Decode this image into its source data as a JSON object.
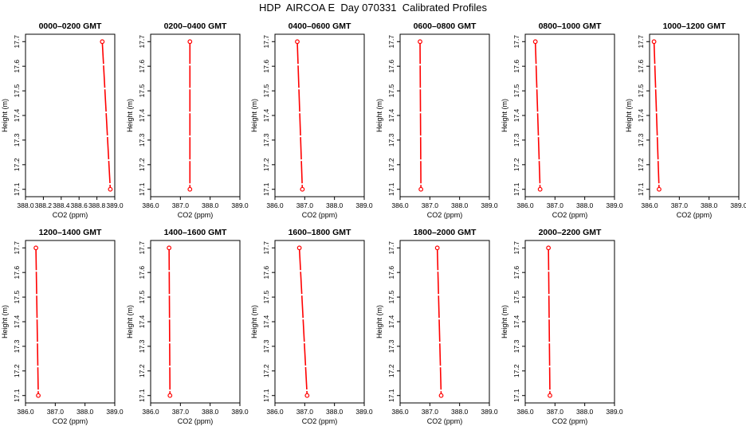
{
  "page_title": "HDP  AIRCOA E  Day 070331  Calibrated Profiles",
  "colors": {
    "profile": "#ff0000",
    "axes": "#000000"
  },
  "chart_data": [
    {
      "type": "line",
      "title": "0000–0200 GMT",
      "xlabel": "CO2 (ppm)",
      "ylabel": "Height (m)",
      "xlim": [
        388.0,
        389.0
      ],
      "ylim": [
        17.07,
        17.73
      ],
      "xticks": [
        "388.0",
        "388.2",
        "388.4",
        "388.6",
        "388.8",
        "389.0"
      ],
      "yticks": [
        "17.1",
        "17.2",
        "17.3",
        "17.4",
        "17.5",
        "17.6",
        "17.7"
      ],
      "series": [
        {
          "x": [
            388.86,
            388.95
          ],
          "y": [
            17.7,
            17.1
          ]
        }
      ]
    },
    {
      "type": "line",
      "title": "0200–0400 GMT",
      "xlabel": "CO2 (ppm)",
      "ylabel": "Height (m)",
      "xlim": [
        386.0,
        389.0
      ],
      "ylim": [
        17.07,
        17.73
      ],
      "xticks": [
        "386.0",
        "387.0",
        "388.0",
        "389.0"
      ],
      "yticks": [
        "17.1",
        "17.2",
        "17.3",
        "17.4",
        "17.5",
        "17.6",
        "17.7"
      ],
      "series": [
        {
          "x": [
            387.32,
            387.32
          ],
          "y": [
            17.7,
            17.1
          ]
        }
      ]
    },
    {
      "type": "line",
      "title": "0400–0600 GMT",
      "xlabel": "CO2 (ppm)",
      "ylabel": "Height (m)",
      "xlim": [
        386.0,
        389.0
      ],
      "ylim": [
        17.07,
        17.73
      ],
      "xticks": [
        "386.0",
        "387.0",
        "388.0",
        "389.0"
      ],
      "yticks": [
        "17.1",
        "17.2",
        "17.3",
        "17.4",
        "17.5",
        "17.6",
        "17.7"
      ],
      "series": [
        {
          "x": [
            386.75,
            386.92
          ],
          "y": [
            17.7,
            17.1
          ]
        }
      ]
    },
    {
      "type": "line",
      "title": "0600–0800 GMT",
      "xlabel": "CO2 (ppm)",
      "ylabel": "Height (m)",
      "xlim": [
        386.0,
        389.0
      ],
      "ylim": [
        17.07,
        17.73
      ],
      "xticks": [
        "386.0",
        "387.0",
        "388.0",
        "389.0"
      ],
      "yticks": [
        "17.1",
        "17.2",
        "17.3",
        "17.4",
        "17.5",
        "17.6",
        "17.7"
      ],
      "series": [
        {
          "x": [
            386.67,
            386.7
          ],
          "y": [
            17.7,
            17.1
          ]
        }
      ]
    },
    {
      "type": "line",
      "title": "0800–1000 GMT",
      "xlabel": "CO2 (ppm)",
      "ylabel": "Height (m)",
      "xlim": [
        386.0,
        389.0
      ],
      "ylim": [
        17.07,
        17.73
      ],
      "xticks": [
        "386.0",
        "387.0",
        "388.0",
        "389.0"
      ],
      "yticks": [
        "17.1",
        "17.2",
        "17.3",
        "17.4",
        "17.5",
        "17.6",
        "17.7"
      ],
      "series": [
        {
          "x": [
            386.34,
            386.5
          ],
          "y": [
            17.7,
            17.1
          ]
        }
      ]
    },
    {
      "type": "line",
      "title": "1000–1200 GMT",
      "xlabel": "CO2 (ppm)",
      "ylabel": "Height (m)",
      "xlim": [
        386.0,
        389.0
      ],
      "ylim": [
        17.07,
        17.73
      ],
      "xticks": [
        "386.0",
        "387.0",
        "388.0",
        "389.0"
      ],
      "yticks": [
        "17.1",
        "17.2",
        "17.3",
        "17.4",
        "17.5",
        "17.6",
        "17.7"
      ],
      "series": [
        {
          "x": [
            386.15,
            386.32
          ],
          "y": [
            17.7,
            17.1
          ]
        }
      ]
    },
    {
      "type": "line",
      "title": "1200–1400 GMT",
      "xlabel": "CO2 (ppm)",
      "ylabel": "Height (m)",
      "xlim": [
        386.0,
        389.0
      ],
      "ylim": [
        17.07,
        17.73
      ],
      "xticks": [
        "386.0",
        "387.0",
        "388.0",
        "389.0"
      ],
      "yticks": [
        "17.1",
        "17.2",
        "17.3",
        "17.4",
        "17.5",
        "17.6",
        "17.7"
      ],
      "series": [
        {
          "x": [
            386.35,
            386.43
          ],
          "y": [
            17.7,
            17.1
          ]
        }
      ]
    },
    {
      "type": "line",
      "title": "1400–1600 GMT",
      "xlabel": "CO2 (ppm)",
      "ylabel": "Height (m)",
      "xlim": [
        386.0,
        389.0
      ],
      "ylim": [
        17.07,
        17.73
      ],
      "xticks": [
        "386.0",
        "387.0",
        "388.0",
        "389.0"
      ],
      "yticks": [
        "17.1",
        "17.2",
        "17.3",
        "17.4",
        "17.5",
        "17.6",
        "17.7"
      ],
      "series": [
        {
          "x": [
            386.62,
            386.65
          ],
          "y": [
            17.7,
            17.1
          ]
        }
      ]
    },
    {
      "type": "line",
      "title": "1600–1800 GMT",
      "xlabel": "CO2 (ppm)",
      "ylabel": "Height (m)",
      "xlim": [
        386.0,
        389.0
      ],
      "ylim": [
        17.07,
        17.73
      ],
      "xticks": [
        "386.0",
        "387.0",
        "388.0",
        "389.0"
      ],
      "yticks": [
        "17.1",
        "17.2",
        "17.3",
        "17.4",
        "17.5",
        "17.6",
        "17.7"
      ],
      "series": [
        {
          "x": [
            386.82,
            387.08
          ],
          "y": [
            17.7,
            17.1
          ]
        }
      ]
    },
    {
      "type": "line",
      "title": "1800–2000 GMT",
      "xlabel": "CO2 (ppm)",
      "ylabel": "Height (m)",
      "xlim": [
        386.0,
        389.0
      ],
      "ylim": [
        17.07,
        17.73
      ],
      "xticks": [
        "386.0",
        "387.0",
        "388.0",
        "389.0"
      ],
      "yticks": [
        "17.1",
        "17.2",
        "17.3",
        "17.4",
        "17.5",
        "17.6",
        "17.7"
      ],
      "series": [
        {
          "x": [
            387.25,
            387.38
          ],
          "y": [
            17.7,
            17.1
          ]
        }
      ]
    },
    {
      "type": "line",
      "title": "2000–2200 GMT",
      "xlabel": "CO2 (ppm)",
      "ylabel": "Height (m)",
      "xlim": [
        386.0,
        389.0
      ],
      "ylim": [
        17.07,
        17.73
      ],
      "xticks": [
        "386.0",
        "387.0",
        "388.0",
        "389.0"
      ],
      "yticks": [
        "17.1",
        "17.2",
        "17.3",
        "17.4",
        "17.5",
        "17.6",
        "17.7"
      ],
      "series": [
        {
          "x": [
            386.78,
            386.83
          ],
          "y": [
            17.7,
            17.1
          ]
        }
      ]
    }
  ]
}
